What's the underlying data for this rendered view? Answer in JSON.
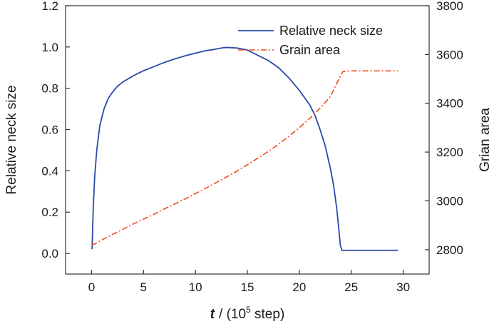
{
  "chart_data": {
    "type": "line",
    "xlabel_symbol": "t",
    "xlabel_prefix": "/ (10",
    "xlabel_exponent": "5",
    "xlabel_suffix": " step)",
    "ylabel": "Relative neck size",
    "y2label": "Grian area",
    "xlim": [
      -2.5,
      32.5
    ],
    "ylim": [
      -0.1,
      1.2
    ],
    "y2lim": [
      2700,
      3800
    ],
    "xticks": [
      0,
      5,
      10,
      15,
      20,
      25,
      30
    ],
    "xtick_labels": [
      "0",
      "5",
      "10",
      "15",
      "20",
      "25",
      "30"
    ],
    "yticks": [
      0.0,
      0.2,
      0.4,
      0.6,
      0.8,
      1.0,
      1.2
    ],
    "ytick_labels": [
      "0.0",
      "0.2",
      "0.4",
      "0.6",
      "0.8",
      "1.0",
      "1.2"
    ],
    "y2ticks": [
      2800,
      3000,
      3200,
      3400,
      3600,
      3800
    ],
    "y2tick_labels": [
      "2800",
      "3000",
      "3200",
      "3400",
      "3600",
      "3800"
    ],
    "grid": false,
    "legend_position": "top-right",
    "series": [
      {
        "name": "Relative neck size",
        "axis": "left",
        "style": "solid",
        "color": "#2a4aa8",
        "x": [
          0.05,
          0.15,
          0.3,
          0.5,
          0.8,
          1.2,
          1.6,
          2.0,
          2.5,
          3.0,
          3.5,
          4.0,
          5.0,
          6.0,
          7.0,
          8.0,
          9.0,
          10.0,
          11.0,
          12.0,
          12.5,
          13.0,
          14.0,
          15.0,
          16.0,
          17.0,
          18.0,
          19.0,
          20.0,
          21.0,
          21.5,
          22.0,
          22.5,
          23.0,
          23.3,
          23.6,
          23.8,
          23.95,
          24.1,
          25.0,
          27.0,
          29.5
        ],
        "y": [
          0.02,
          0.2,
          0.37,
          0.5,
          0.62,
          0.7,
          0.75,
          0.78,
          0.81,
          0.83,
          0.845,
          0.86,
          0.885,
          0.905,
          0.925,
          0.942,
          0.957,
          0.97,
          0.982,
          0.99,
          0.995,
          0.998,
          0.995,
          0.985,
          0.96,
          0.935,
          0.9,
          0.85,
          0.79,
          0.72,
          0.67,
          0.6,
          0.52,
          0.41,
          0.33,
          0.22,
          0.12,
          0.04,
          0.015,
          0.015,
          0.015,
          0.015
        ]
      },
      {
        "name": "Grain area",
        "axis": "right",
        "style": "dashdot",
        "color": "#e8501c",
        "x": [
          0.0,
          0.3,
          1.0,
          2.0,
          3.0,
          4.0,
          5.0,
          6.0,
          7.0,
          8.0,
          9.0,
          10.0,
          11.0,
          12.0,
          13.0,
          14.0,
          15.0,
          16.0,
          17.0,
          18.0,
          19.0,
          20.0,
          21.0,
          22.0,
          23.0,
          23.7,
          24.2,
          25.0,
          27.0,
          29.5
        ],
        "y": [
          2820,
          2823,
          2840,
          2862,
          2883,
          2905,
          2925,
          2945,
          2967,
          2987,
          3008,
          3030,
          3052,
          3075,
          3098,
          3122,
          3148,
          3175,
          3202,
          3232,
          3265,
          3300,
          3338,
          3380,
          3428,
          3490,
          3530,
          3533,
          3533,
          3533
        ]
      }
    ]
  }
}
